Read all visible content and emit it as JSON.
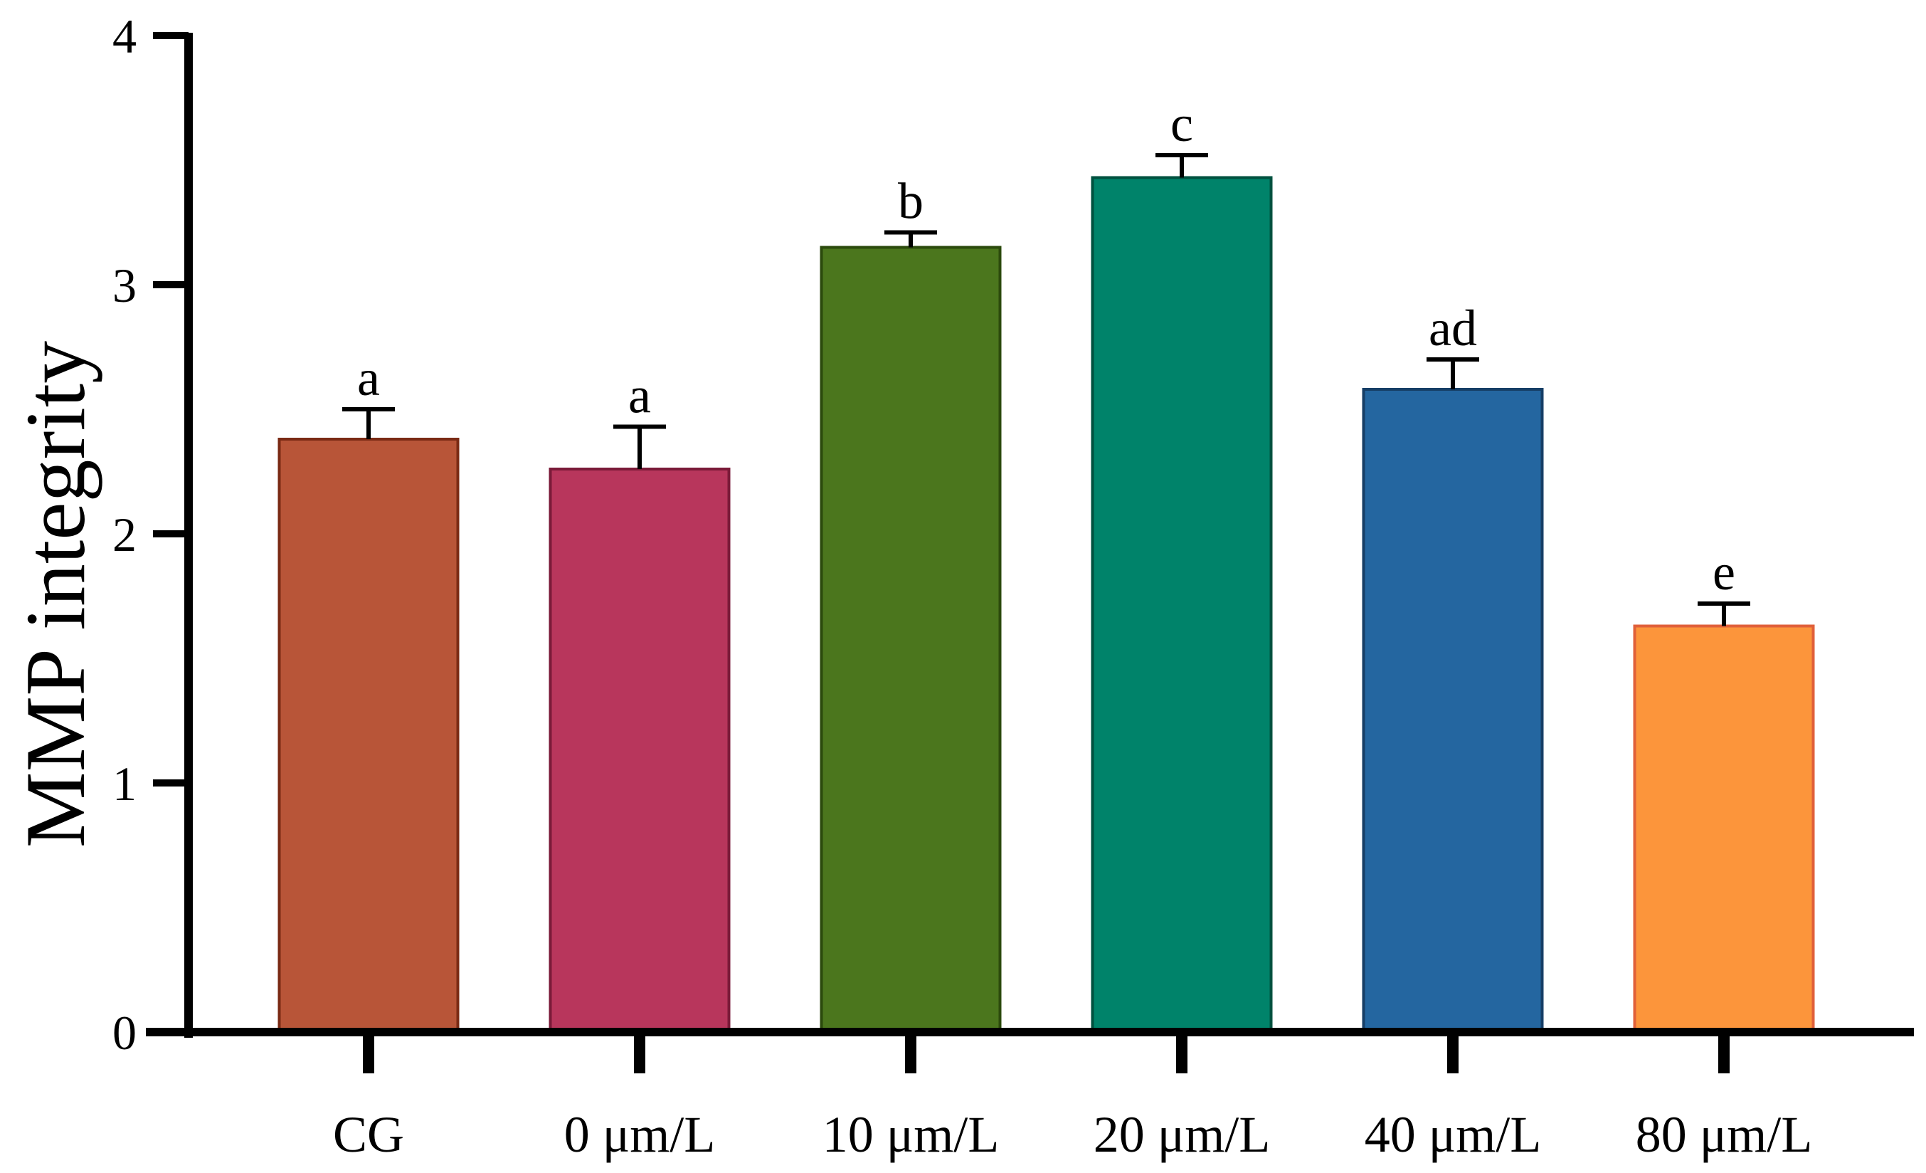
{
  "chart_data": {
    "type": "bar",
    "title": "",
    "xlabel": "",
    "ylabel": "MMP integrity",
    "ylim": [
      0,
      4
    ],
    "yticks": [
      0,
      1,
      2,
      3,
      4
    ],
    "grid": false,
    "categories": [
      "CG",
      "0 μm/L",
      "10 μm/L",
      "20 μm/L",
      "40 μm/L",
      "80 μm/L"
    ],
    "values": [
      2.38,
      2.26,
      3.15,
      3.43,
      2.58,
      1.63
    ],
    "errors": [
      0.12,
      0.17,
      0.06,
      0.09,
      0.12,
      0.09
    ],
    "significance": [
      "a",
      "a",
      "b",
      "c",
      "ad",
      "e"
    ],
    "colors": [
      "#b85538",
      "#b8365c",
      "#4b761d",
      "#00836a",
      "#2466a0",
      "#fc953b"
    ],
    "edge_colors": [
      "#7a2a14",
      "#7a1a38",
      "#2b4a0c",
      "#00513f",
      "#163e66",
      "#e0603a"
    ]
  }
}
